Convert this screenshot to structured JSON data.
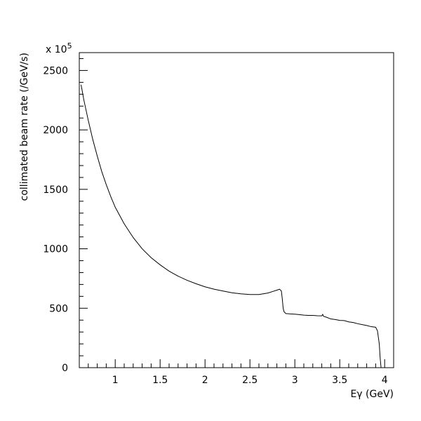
{
  "chart_data": {
    "type": "line",
    "title": "",
    "xlabel": "Eγ (GeV)",
    "ylabel": "collimated beam rate (/GeV/s)",
    "y_multiplier_label": "x 10",
    "y_multiplier_exponent": "5",
    "xlim": [
      0.6,
      4.1
    ],
    "ylim": [
      0,
      2650
    ],
    "x_ticks": [
      1,
      1.5,
      2,
      2.5,
      3,
      3.5,
      4
    ],
    "x_tick_labels": [
      "1",
      "1.5",
      "2",
      "2.5",
      "3",
      "3.5",
      "4"
    ],
    "y_ticks": [
      0,
      500,
      1000,
      1500,
      2000,
      2500
    ],
    "y_tick_labels": [
      "0",
      "500",
      "1000",
      "1500",
      "2000",
      "2500"
    ],
    "grid": false,
    "legend": "none",
    "line_color": "#000000",
    "series": [
      {
        "x": [
          0.62,
          0.65,
          0.7,
          0.75,
          0.8,
          0.85,
          0.9,
          0.95,
          1.0,
          1.1,
          1.2,
          1.3,
          1.4,
          1.5,
          1.6,
          1.7,
          1.8,
          1.9,
          2.0,
          2.1,
          2.2,
          2.3,
          2.4,
          2.5,
          2.6,
          2.7,
          2.75,
          2.8,
          2.83,
          2.85,
          2.86,
          2.87,
          2.88,
          2.9,
          2.95,
          3.0,
          3.05,
          3.1,
          3.15,
          3.2,
          3.25,
          3.3,
          3.31,
          3.32,
          3.35,
          3.4,
          3.45,
          3.5,
          3.55,
          3.6,
          3.65,
          3.7,
          3.75,
          3.8,
          3.85,
          3.9,
          3.92,
          3.94,
          3.95,
          3.96
        ],
        "y": [
          2380,
          2255,
          2080,
          1920,
          1780,
          1650,
          1540,
          1440,
          1350,
          1210,
          1095,
          1000,
          925,
          865,
          812,
          770,
          735,
          706,
          680,
          660,
          645,
          630,
          621,
          615,
          615,
          628,
          640,
          652,
          660,
          645,
          580,
          500,
          470,
          455,
          452,
          450,
          446,
          442,
          440,
          440,
          437,
          436,
          448,
          432,
          425,
          410,
          405,
          398,
          396,
          385,
          380,
          370,
          362,
          355,
          345,
          340,
          310,
          200,
          80,
          0
        ]
      }
    ]
  }
}
